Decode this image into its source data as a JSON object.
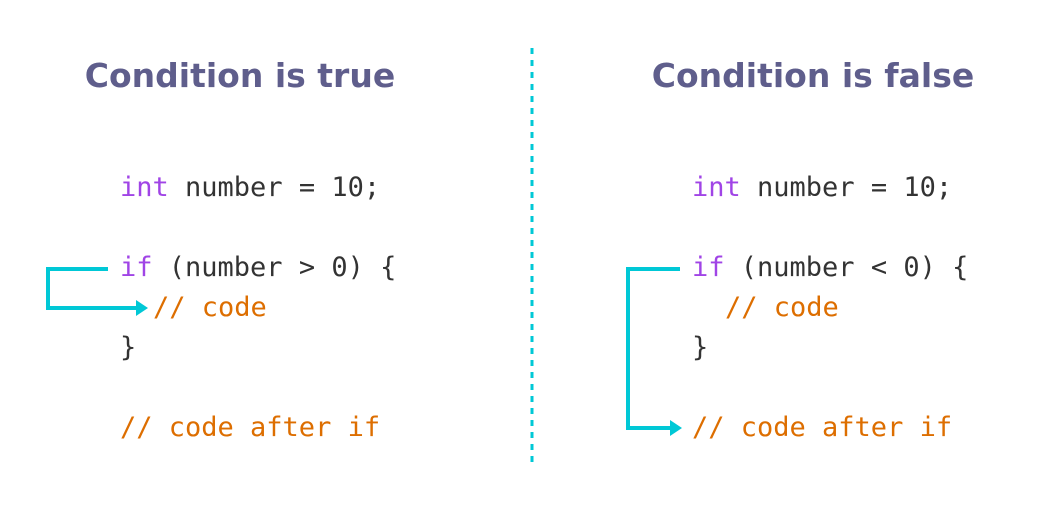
{
  "colors": {
    "title": "#5f5e8c",
    "keyword": "#a044e6",
    "comment": "#dd6e00",
    "text": "#333333",
    "arrow": "#00c8d6"
  },
  "left": {
    "title": "Condition is true",
    "line1": {
      "kw": "int",
      "rest": " number = 10;"
    },
    "line2": {
      "kw": "if",
      "rest": " (number > 0) {"
    },
    "line3": "// code",
    "line4": "}",
    "line5": "// code after if"
  },
  "right": {
    "title": "Condition is false",
    "line1": {
      "kw": "int",
      "rest": " number = 10;"
    },
    "line2": {
      "kw": "if",
      "rest": " (number < 0) {"
    },
    "line3": "// code",
    "line4": "}",
    "line5": "// code after if"
  }
}
